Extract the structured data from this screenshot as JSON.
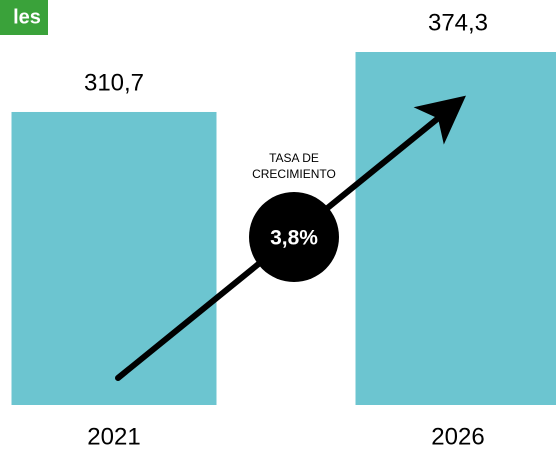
{
  "chart_data": {
    "type": "bar",
    "badge": "les",
    "categories": [
      "2021",
      "2026"
    ],
    "values": [
      310.7,
      374.3
    ],
    "value_labels": [
      "310,7",
      "374,3"
    ],
    "color": "#6cc5d0",
    "annotation": {
      "title_lines": [
        "TASA DE",
        "CRECIMIENTO"
      ],
      "value_label": "3,8%"
    }
  }
}
